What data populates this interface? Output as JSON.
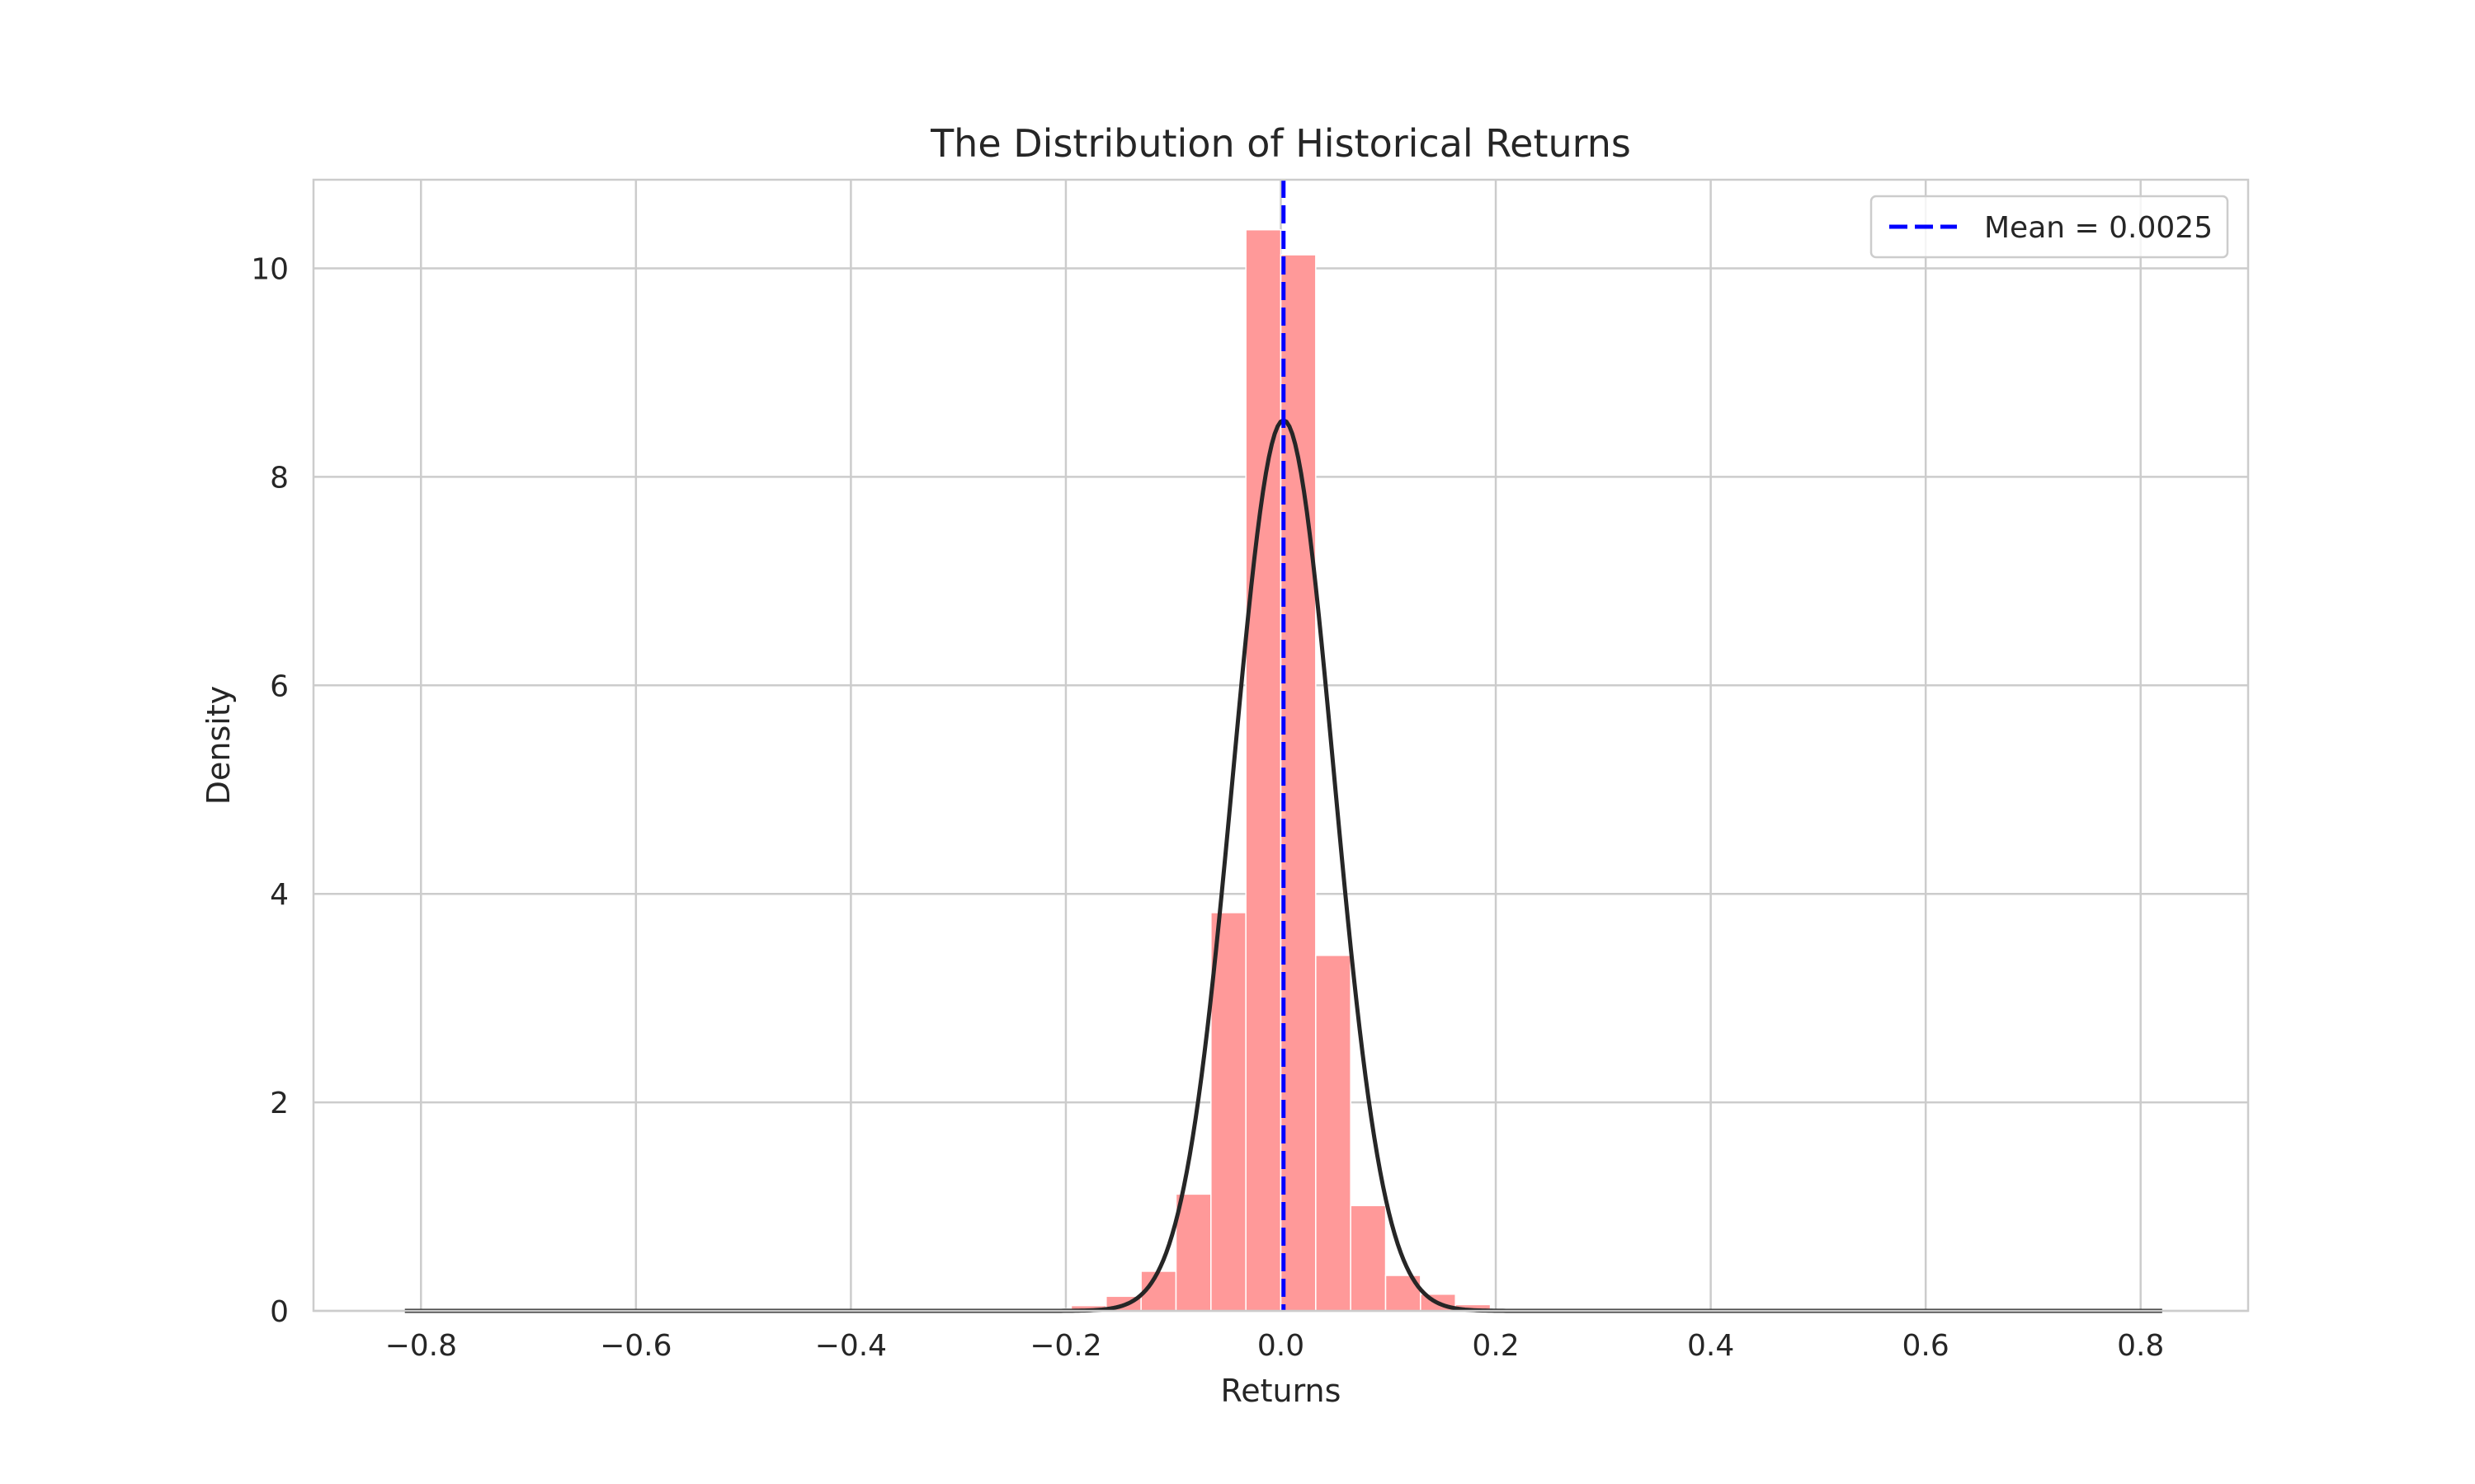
{
  "chart_data": {
    "type": "bar",
    "title": "The Distribution of Historical Returns",
    "xlabel": "Returns",
    "ylabel": "Density",
    "xlim": [
      -0.9,
      0.9
    ],
    "ylim": [
      0,
      10.85
    ],
    "xticks": [
      -0.8,
      -0.6,
      -0.4,
      -0.2,
      0.0,
      0.2,
      0.4,
      0.6,
      0.8
    ],
    "xtick_labels": [
      "−0.8",
      "−0.6",
      "−0.4",
      "−0.2",
      "0.0",
      "0.2",
      "0.4",
      "0.6",
      "0.8"
    ],
    "yticks": [
      0,
      2,
      4,
      6,
      8,
      10
    ],
    "ytick_labels": [
      "0",
      "2",
      "4",
      "6",
      "8",
      "10"
    ],
    "grid": true,
    "legend_position": "top-right",
    "bin_width": 0.0325,
    "histogram": {
      "color": "#ff9999",
      "bins": [
        {
          "x0": -0.2275,
          "density": 0.02
        },
        {
          "x0": -0.195,
          "density": 0.05
        },
        {
          "x0": -0.1625,
          "density": 0.14
        },
        {
          "x0": -0.13,
          "density": 0.38
        },
        {
          "x0": -0.0975,
          "density": 1.12
        },
        {
          "x0": -0.065,
          "density": 3.82
        },
        {
          "x0": -0.0325,
          "density": 10.37
        },
        {
          "x0": 0.0,
          "density": 10.13
        },
        {
          "x0": 0.0325,
          "density": 3.41
        },
        {
          "x0": 0.065,
          "density": 1.01
        },
        {
          "x0": 0.0975,
          "density": 0.34
        },
        {
          "x0": 0.13,
          "density": 0.16
        },
        {
          "x0": 0.1625,
          "density": 0.06
        }
      ]
    },
    "normal_fit": {
      "color": "#262626",
      "mean": 0.0025,
      "std": 0.0467,
      "x_range": [
        -0.815,
        0.82
      ]
    },
    "mean_line": {
      "label": "Mean = 0.0025",
      "x": 0.0025,
      "color": "#0000ff"
    }
  }
}
